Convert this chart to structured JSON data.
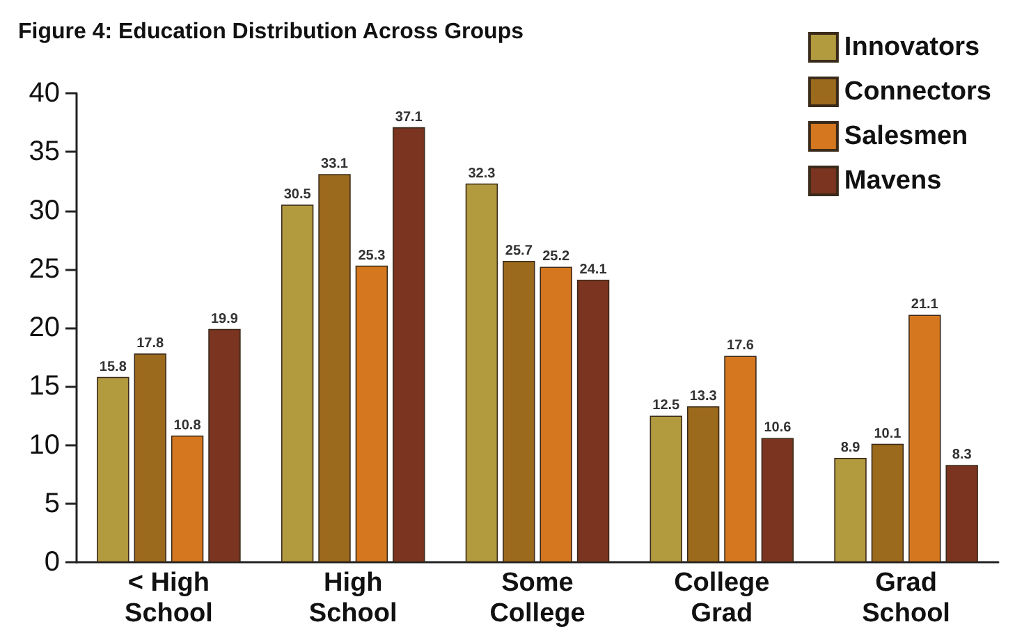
{
  "chart_data": {
    "type": "bar",
    "title": "Figure 4: Education Distribution Across Groups",
    "categories": [
      "< High\nSchool",
      "High\nSchool",
      "Some\nCollege",
      "College\nGrad",
      "Grad\nSchool"
    ],
    "series": [
      {
        "name": "Innovators",
        "color": "#b29a3f",
        "values": [
          15.8,
          30.5,
          32.3,
          12.5,
          8.9
        ]
      },
      {
        "name": "Connectors",
        "color": "#9c6a1c",
        "values": [
          17.8,
          33.1,
          25.7,
          13.3,
          10.1
        ]
      },
      {
        "name": "Salesmen",
        "color": "#d4771f",
        "values": [
          10.8,
          25.3,
          25.2,
          17.6,
          21.1
        ]
      },
      {
        "name": "Mavens",
        "color": "#7b3420",
        "values": [
          19.9,
          37.1,
          24.1,
          10.6,
          8.3
        ]
      }
    ],
    "ylim": [
      0,
      40
    ],
    "yticks": [
      0,
      5,
      10,
      15,
      20,
      25,
      30,
      35,
      40
    ],
    "data_labels": true,
    "grid": false,
    "legend": "top right"
  }
}
